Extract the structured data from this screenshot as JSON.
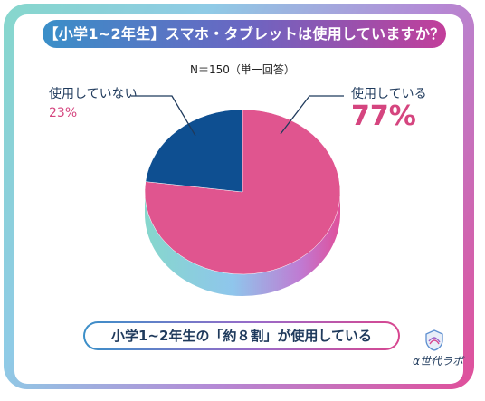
{
  "title": "【小学1~2年生】スマホ・タブレットは使用していますか？",
  "sample_note": "N＝150（単一回答）",
  "chart_data": {
    "type": "pie",
    "title": "【小学1~2年生】スマホ・タブレットは使用していますか？",
    "categories": [
      "使用している",
      "使用していない"
    ],
    "values": [
      77,
      23
    ],
    "value_labels": [
      "77%",
      "23%"
    ],
    "colors": [
      "#e0558f",
      "#0e4f91"
    ]
  },
  "summary_text": "小学1~2年生の「約８割」が使用している",
  "logo_text": "α世代ラボ",
  "logo_icon": "alpha-shield-icon"
}
